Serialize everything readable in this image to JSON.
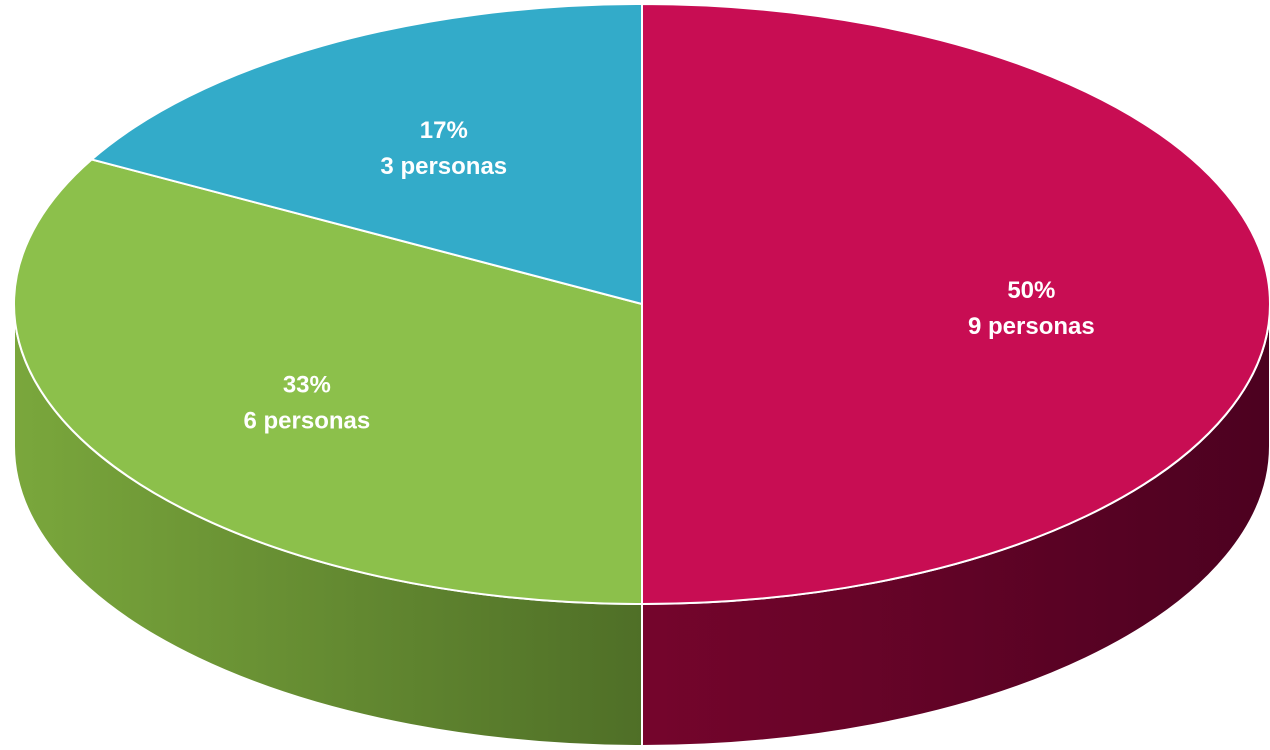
{
  "chart_data": {
    "type": "pie",
    "style": "3d",
    "title": "",
    "slices": [
      {
        "label": "50%",
        "count_label": "9 personas",
        "percent": 50,
        "value": 9,
        "color": "#c80d53",
        "side_color_light": "#75052c",
        "side_color_dark": "#4c0120"
      },
      {
        "label": "33%",
        "count_label": "6 personas",
        "percent": 33,
        "value": 6,
        "color": "#8cc04b",
        "side_color_light": "#7aa73c",
        "side_color_dark": "#4f6f27"
      },
      {
        "label": "17%",
        "count_label": "3 personas",
        "percent": 17,
        "value": 3,
        "color": "#33abc9",
        "side_color_light": "#2a8ca5",
        "side_color_dark": "#1f6a7d"
      }
    ]
  }
}
